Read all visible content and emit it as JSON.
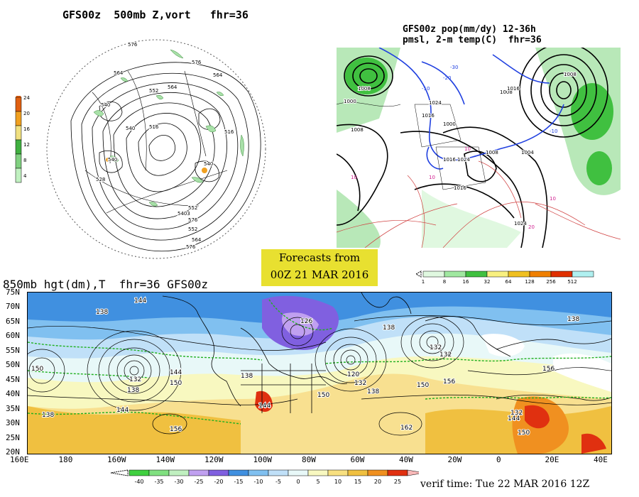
{
  "top_left": {
    "title": "GFS00z  500mb Z,vort   fhr=36",
    "colorbar_ticks": [
      "24",
      "20",
      "16",
      "12",
      "8",
      "4"
    ],
    "colorbar_colors": [
      "#e06010",
      "#f0a020",
      "#f0e080",
      "#40b040",
      "#80d080",
      "#c0f0c0"
    ],
    "contour_labels": [
      "576",
      "576",
      "564",
      "564",
      "540",
      "516",
      "540",
      "540",
      "516",
      "528",
      "552",
      "576",
      "5403",
      "552",
      "564",
      "552",
      "564",
      "576",
      "540"
    ]
  },
  "top_right": {
    "title_line1": "GFS00z pop(mm/dy) 12-36h",
    "title_line2": "pmsl, 2-m temp(C)  fhr=36",
    "colorbar_ticks": [
      "1",
      "8",
      "16",
      "32",
      "64",
      "128",
      "256",
      "512"
    ],
    "colorbar_colors": [
      "#e0f8e0",
      "#a0e8a0",
      "#40c040",
      "#f8f080",
      "#f0c020",
      "#f08000",
      "#e03000",
      "#b0f0f0"
    ],
    "isobar_labels": [
      "1008",
      "1000",
      "1024",
      "1016",
      "1008",
      "1000",
      "1008",
      "1016",
      "1024",
      "1016",
      "1008",
      "1016",
      "1024",
      "1008",
      "1004"
    ],
    "temp_labels": [
      "-10",
      "-20",
      "-30",
      "-10",
      "10",
      "10",
      "10",
      "20",
      "10"
    ]
  },
  "center": {
    "forecast_line1": "Forecasts from",
    "forecast_line2": "00Z 21 MAR 2016"
  },
  "bottom": {
    "title": "850mb hgt(dm),T  fhr=36 GFS00z",
    "lat_labels": [
      "75N",
      "70N",
      "65N",
      "60N",
      "55N",
      "50N",
      "45N",
      "40N",
      "35N",
      "30N",
      "25N",
      "20N"
    ],
    "lon_labels": [
      "160E",
      "180",
      "160W",
      "140W",
      "120W",
      "100W",
      "80W",
      "60W",
      "40W",
      "20W",
      "0",
      "20E",
      "40E"
    ],
    "height_labels": [
      "144",
      "138",
      "138",
      "144",
      "132",
      "138",
      "150",
      "156",
      "132",
      "126",
      "138",
      "120",
      "132",
      "138",
      "150",
      "156",
      "144",
      "144",
      "162",
      "138",
      "132",
      "156",
      "132",
      "150",
      "144",
      "138",
      "150",
      "150"
    ],
    "colorbar_ticks": [
      "-40",
      "-35",
      "-30",
      "-25",
      "-20",
      "-15",
      "-10",
      "-5",
      "0",
      "5",
      "10",
      "15",
      "20",
      "25"
    ],
    "colorbar_colors": [
      "#40d040",
      "#80e080",
      "#c0f0c0",
      "#c0a0f0",
      "#8060e0",
      "#4090e0",
      "#80c0f0",
      "#c0e0f8",
      "#e8f8f8",
      "#f8f8c0",
      "#f8e080",
      "#f0c040",
      "#f09020",
      "#e03010"
    ],
    "verif_time": "verif time: Tue 22 MAR 2016 12Z"
  }
}
